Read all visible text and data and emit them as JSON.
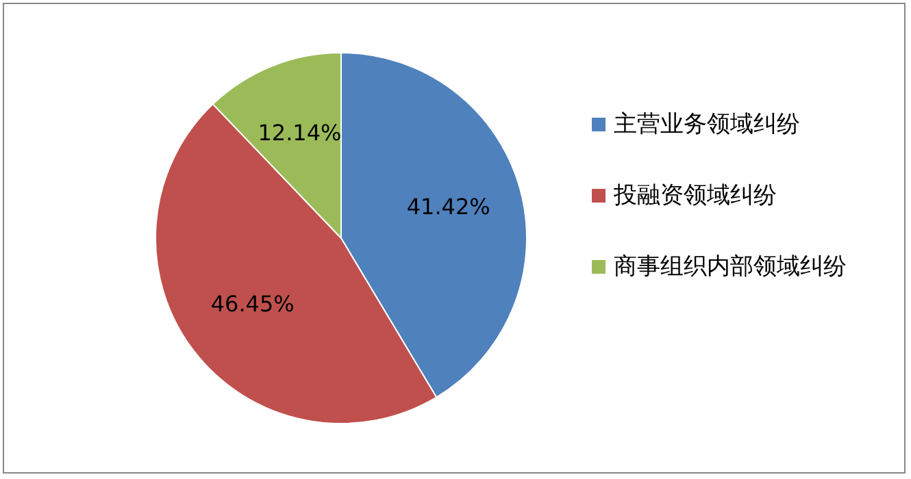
{
  "chart_data": {
    "type": "pie",
    "categories": [
      "主营业务领域纠纷",
      "投融资领域纠纷",
      "商事组织内部领域纠纷"
    ],
    "values": [
      41.42,
      46.45,
      12.14
    ],
    "colors": [
      "#4f81bd",
      "#c0504d",
      "#9bbb59"
    ],
    "value_labels": [
      "41.42%",
      "46.45%",
      "12.14%"
    ],
    "legend": "right"
  }
}
